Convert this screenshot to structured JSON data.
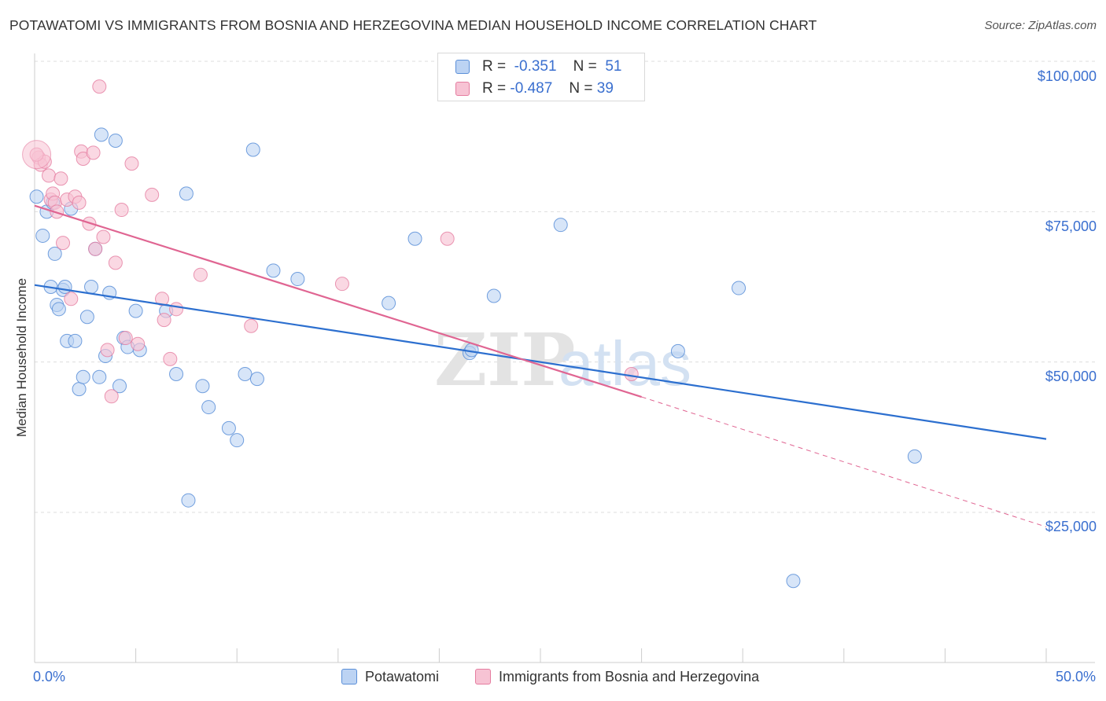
{
  "title": "POTAWATOMI VS IMMIGRANTS FROM BOSNIA AND HERZEGOVINA MEDIAN HOUSEHOLD INCOME CORRELATION CHART",
  "source": "Source: ZipAtlas.com",
  "watermark": {
    "zip": "ZIP",
    "atlas": "atlas"
  },
  "legend": {
    "blue": {
      "r_label": "R =",
      "r_value": "-0.351",
      "n_label": "N =",
      "n_value": "51"
    },
    "pink": {
      "r_label": "R =",
      "r_value": "-0.487",
      "n_label": "N =",
      "n_value": "39"
    }
  },
  "colors": {
    "blue": "#5b8fd8",
    "blue_fill": "#bcd3f3",
    "blue_line": "#2c6fcf",
    "pink": "#e57da0",
    "pink_fill": "#f7c3d4",
    "pink_line": "#e06592",
    "tick_text": "#3a6fcf"
  },
  "chart_data": {
    "type": "scatter",
    "title": "POTAWATOMI VS IMMIGRANTS FROM BOSNIA AND HERZEGOVINA MEDIAN HOUSEHOLD INCOME CORRELATION CHART",
    "xlabel": "",
    "ylabel": "Median Household Income",
    "xlim": [
      0,
      50
    ],
    "ylim": [
      0,
      102000
    ],
    "x_tick_labels": [
      "0.0%",
      "50.0%"
    ],
    "y_ticks": [
      25000,
      50000,
      75000,
      100000
    ],
    "y_tick_labels": [
      "$25,000",
      "$50,000",
      "$75,000",
      "$100,000"
    ],
    "grid": true,
    "series": [
      {
        "name": "Potawatomi",
        "color": "#5b8fd8",
        "points": [
          [
            0.1,
            77500
          ],
          [
            0.4,
            71000
          ],
          [
            0.6,
            75000
          ],
          [
            0.8,
            62500
          ],
          [
            0.9,
            76500
          ],
          [
            1.0,
            68000
          ],
          [
            1.1,
            59500
          ],
          [
            1.2,
            58800
          ],
          [
            1.4,
            62000
          ],
          [
            1.5,
            62500
          ],
          [
            1.6,
            53500
          ],
          [
            1.8,
            75500
          ],
          [
            2.0,
            53500
          ],
          [
            2.2,
            45500
          ],
          [
            2.4,
            47500
          ],
          [
            2.6,
            57500
          ],
          [
            2.8,
            62500
          ],
          [
            3.0,
            68800
          ],
          [
            3.2,
            47500
          ],
          [
            3.3,
            87800
          ],
          [
            3.5,
            51000
          ],
          [
            3.7,
            61500
          ],
          [
            4.0,
            86800
          ],
          [
            4.2,
            46000
          ],
          [
            4.4,
            54000
          ],
          [
            4.6,
            52500
          ],
          [
            5.0,
            58500
          ],
          [
            5.2,
            52000
          ],
          [
            6.5,
            58500
          ],
          [
            7.0,
            48000
          ],
          [
            7.5,
            78000
          ],
          [
            7.6,
            27000
          ],
          [
            8.3,
            46000
          ],
          [
            8.6,
            42500
          ],
          [
            9.6,
            39000
          ],
          [
            10.0,
            37000
          ],
          [
            10.4,
            48000
          ],
          [
            10.8,
            85300
          ],
          [
            11.0,
            47200
          ],
          [
            11.8,
            65200
          ],
          [
            13.0,
            63800
          ],
          [
            17.5,
            59800
          ],
          [
            18.8,
            70500
          ],
          [
            21.5,
            51500
          ],
          [
            21.6,
            52000
          ],
          [
            22.7,
            61000
          ],
          [
            26.0,
            72800
          ],
          [
            31.8,
            51800
          ],
          [
            34.8,
            62300
          ],
          [
            37.5,
            13600
          ],
          [
            43.5,
            34300
          ]
        ]
      },
      {
        "name": "Immigrants from Bosnia and Herzegovina",
        "color": "#e57da0",
        "points": [
          [
            0.2,
            84000
          ],
          [
            0.3,
            82800
          ],
          [
            0.5,
            83300
          ],
          [
            0.7,
            81000
          ],
          [
            0.8,
            77000
          ],
          [
            0.9,
            78000
          ],
          [
            1.0,
            76500
          ],
          [
            1.1,
            75000
          ],
          [
            1.3,
            80500
          ],
          [
            1.4,
            69800
          ],
          [
            1.6,
            77000
          ],
          [
            1.8,
            60500
          ],
          [
            2.0,
            77500
          ],
          [
            2.2,
            76500
          ],
          [
            2.3,
            85000
          ],
          [
            2.4,
            83800
          ],
          [
            2.7,
            73000
          ],
          [
            2.9,
            84800
          ],
          [
            3.0,
            68800
          ],
          [
            3.2,
            95800
          ],
          [
            3.4,
            70800
          ],
          [
            3.6,
            52000
          ],
          [
            3.8,
            44300
          ],
          [
            4.0,
            66500
          ],
          [
            4.3,
            75300
          ],
          [
            4.5,
            54000
          ],
          [
            4.8,
            83000
          ],
          [
            5.1,
            53000
          ],
          [
            5.8,
            77800
          ],
          [
            6.3,
            60500
          ],
          [
            6.4,
            57000
          ],
          [
            6.7,
            50500
          ],
          [
            7.0,
            58800
          ],
          [
            8.2,
            64500
          ],
          [
            10.7,
            56000
          ],
          [
            15.2,
            63000
          ],
          [
            20.4,
            70500
          ],
          [
            29.5,
            48000
          ],
          [
            0.1,
            84500
          ]
        ]
      }
    ],
    "trendlines": [
      {
        "series": "Potawatomi",
        "x": [
          0,
          50
        ],
        "y": [
          62800,
          37200
        ]
      },
      {
        "series": "Immigrants from Bosnia and Herzegovina",
        "x": [
          0,
          30
        ],
        "y": [
          76000,
          44200
        ]
      },
      {
        "series": "Immigrants from Bosnia and Herzegovina",
        "style": "dashed",
        "x": [
          30,
          50
        ],
        "y": [
          44200,
          22600
        ]
      }
    ]
  }
}
